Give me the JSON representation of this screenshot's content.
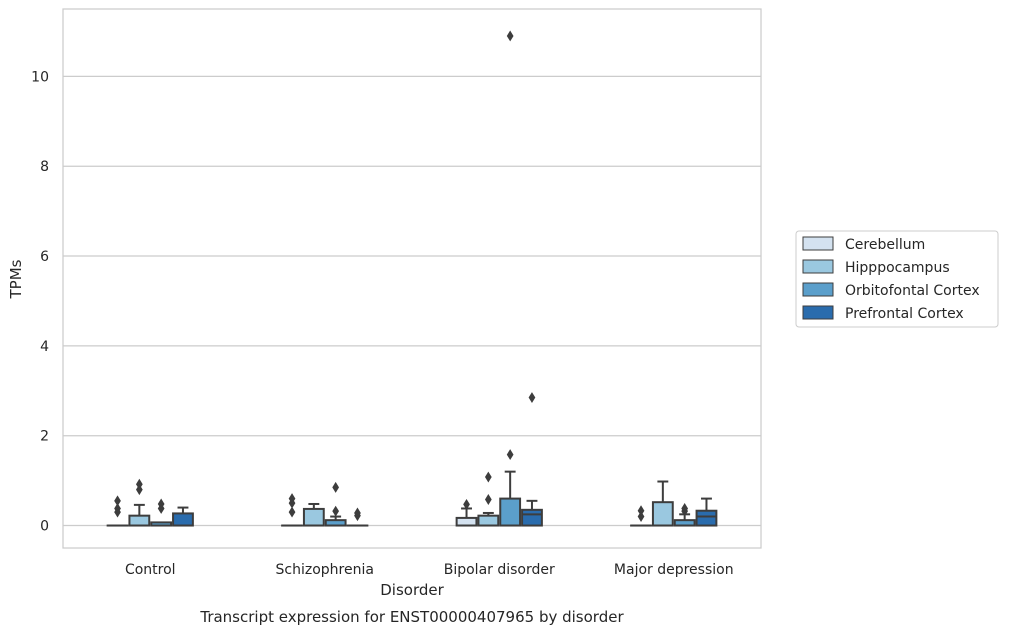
{
  "chart_data": {
    "type": "box",
    "title": "Transcript expression for ENST00000407965 by disorder",
    "xlabel": "Disorder",
    "ylabel": "TPMs",
    "ylim": [
      -0.5,
      11.5
    ],
    "yticks": [
      0,
      2,
      4,
      6,
      8,
      10
    ],
    "ytick_labels": [
      "0",
      "2",
      "4",
      "6",
      "8",
      "10"
    ],
    "grid": "horizontal",
    "legend_position": "right",
    "categories": [
      "Control",
      "Schizophrenia",
      "Bipolar disorder",
      "Major depression"
    ],
    "series": [
      {
        "name": "Cerebellum",
        "color": "#d4e2f0",
        "boxes": [
          {
            "category": "Control",
            "whisker_low": 0,
            "q1": 0,
            "median": 0,
            "q3": 0,
            "whisker_high": 0,
            "outliers": [
              0.3,
              0.38,
              0.55
            ]
          },
          {
            "category": "Schizophrenia",
            "whisker_low": 0,
            "q1": 0,
            "median": 0,
            "q3": 0,
            "whisker_high": 0,
            "outliers": [
              0.3,
              0.5,
              0.6
            ]
          },
          {
            "category": "Bipolar disorder",
            "whisker_low": 0,
            "q1": 0,
            "median": 0,
            "q3": 0.17,
            "whisker_high": 0.38,
            "outliers": [
              0.47
            ]
          },
          {
            "category": "Major depression",
            "whisker_low": 0,
            "q1": 0,
            "median": 0,
            "q3": 0,
            "whisker_high": 0,
            "outliers": [
              0.2,
              0.33
            ]
          }
        ]
      },
      {
        "name": "Hipppocampus",
        "color": "#9ac8e0",
        "boxes": [
          {
            "category": "Control",
            "whisker_low": 0,
            "q1": 0,
            "median": 0,
            "q3": 0.22,
            "whisker_high": 0.46,
            "outliers": [
              0.8,
              0.92
            ]
          },
          {
            "category": "Schizophrenia",
            "whisker_low": 0,
            "q1": 0,
            "median": 0,
            "q3": 0.37,
            "whisker_high": 0.48,
            "outliers": []
          },
          {
            "category": "Bipolar disorder",
            "whisker_low": 0,
            "q1": 0,
            "median": 0,
            "q3": 0.22,
            "whisker_high": 0.28,
            "outliers": [
              0.58,
              1.08
            ]
          },
          {
            "category": "Major depression",
            "whisker_low": 0,
            "q1": 0,
            "median": 0,
            "q3": 0.52,
            "whisker_high": 0.98,
            "outliers": []
          }
        ]
      },
      {
        "name": "Orbitofontal Cortex",
        "color": "#5b9fcb",
        "boxes": [
          {
            "category": "Control",
            "whisker_low": 0,
            "q1": 0,
            "median": 0,
            "q3": 0.07,
            "whisker_high": 0.07,
            "outliers": [
              0.38,
              0.48
            ]
          },
          {
            "category": "Schizophrenia",
            "whisker_low": 0,
            "q1": 0,
            "median": 0,
            "q3": 0.12,
            "whisker_high": 0.2,
            "outliers": [
              0.32,
              0.85
            ]
          },
          {
            "category": "Bipolar disorder",
            "whisker_low": 0,
            "q1": 0,
            "median": 0,
            "q3": 0.6,
            "whisker_high": 1.2,
            "outliers": [
              1.58,
              10.9
            ]
          },
          {
            "category": "Major depression",
            "whisker_low": 0,
            "q1": 0,
            "median": 0,
            "q3": 0.12,
            "whisker_high": 0.25,
            "outliers": [
              0.32,
              0.38
            ]
          }
        ]
      },
      {
        "name": "Prefrontal Cortex",
        "color": "#2a6cad",
        "boxes": [
          {
            "category": "Control",
            "whisker_low": 0,
            "q1": 0,
            "median": 0,
            "q3": 0.27,
            "whisker_high": 0.4,
            "outliers": []
          },
          {
            "category": "Schizophrenia",
            "whisker_low": 0,
            "q1": 0,
            "median": 0,
            "q3": 0,
            "whisker_high": 0,
            "outliers": [
              0.22,
              0.28
            ]
          },
          {
            "category": "Bipolar disorder",
            "whisker_low": 0,
            "q1": 0,
            "median": 0.25,
            "q3": 0.35,
            "whisker_high": 0.55,
            "outliers": [
              2.85
            ]
          },
          {
            "category": "Major depression",
            "whisker_low": 0,
            "q1": 0,
            "median": 0.2,
            "q3": 0.33,
            "whisker_high": 0.6,
            "outliers": []
          }
        ]
      }
    ]
  }
}
